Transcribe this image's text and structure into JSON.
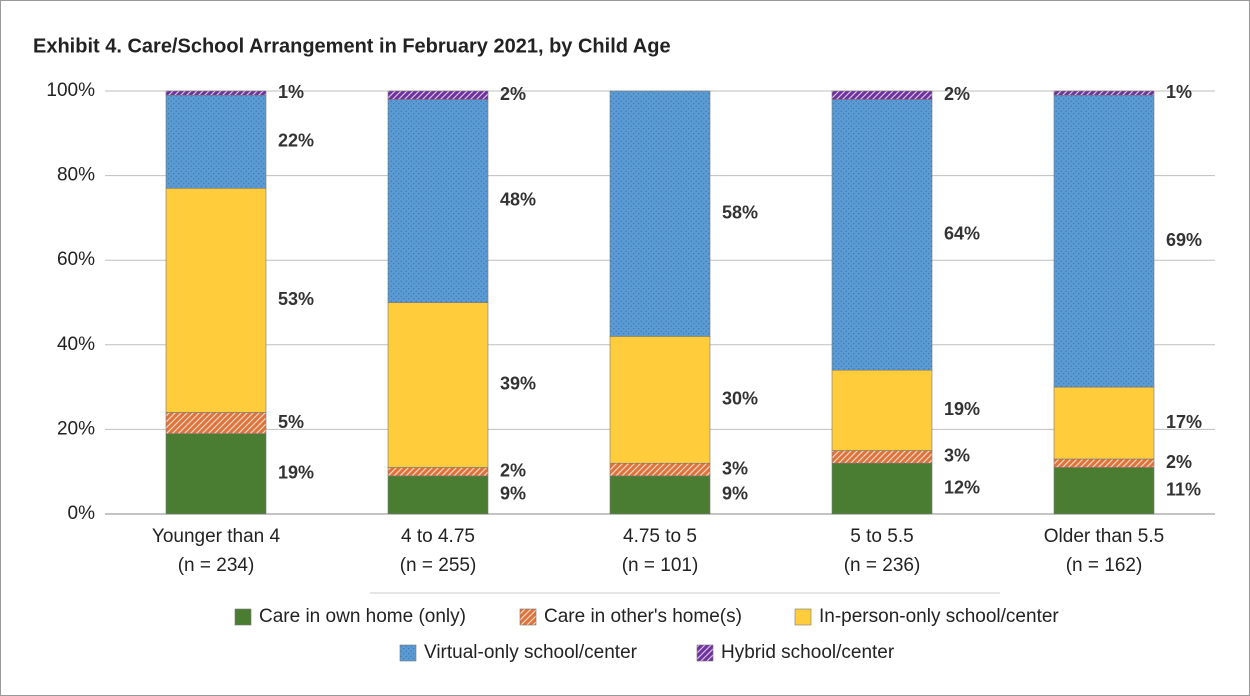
{
  "chart_data": {
    "type": "stacked_bar",
    "title": "Exhibit 4. Care/School Arrangement in February 2021, by Child Age",
    "categories": [
      [
        "Younger than 4",
        "(n = 234)"
      ],
      [
        "4 to 4.75",
        "(n = 255)"
      ],
      [
        "4.75 to 5",
        "(n = 101)"
      ],
      [
        "5 to 5.5",
        "(n = 236)"
      ],
      [
        "Older than 5.5",
        "(n = 162)"
      ]
    ],
    "series": [
      {
        "name": "Care in own home (only)",
        "color": "#4a7d32",
        "pattern": "solid",
        "values": [
          19,
          9,
          9,
          12,
          11
        ],
        "value_labels": [
          "19%",
          "9%",
          "9%",
          "12%",
          "11%"
        ]
      },
      {
        "name": "Care in other's home(s)",
        "color": "#e0733a",
        "pattern": "hatch",
        "values": [
          5,
          2,
          3,
          3,
          2
        ],
        "value_labels": [
          "5%",
          "2%",
          "3%",
          "3%",
          "2%"
        ]
      },
      {
        "name": "In-person-only school/center",
        "color": "#ffcd3c",
        "pattern": "solid",
        "values": [
          53,
          39,
          30,
          19,
          17
        ],
        "value_labels": [
          "53%",
          "39%",
          "30%",
          "19%",
          "17%"
        ]
      },
      {
        "name": "Virtual-only school/center",
        "color": "#5b9bd5",
        "pattern": "dots",
        "values": [
          22,
          48,
          58,
          64,
          69
        ],
        "value_labels": [
          "22%",
          "48%",
          "58%",
          "64%",
          "69%"
        ]
      },
      {
        "name": "Hybrid school/center",
        "color": "#7030a0",
        "pattern": "hatch",
        "values": [
          1,
          2,
          null,
          2,
          1
        ],
        "value_labels": [
          "1%",
          "2%",
          null,
          "2%",
          "1%"
        ]
      }
    ],
    "ylim": [
      0,
      100
    ],
    "yticks": [
      {
        "value": 0,
        "label": "0%"
      },
      {
        "value": 20,
        "label": "20%"
      },
      {
        "value": 40,
        "label": "40%"
      },
      {
        "value": 60,
        "label": "60%"
      },
      {
        "value": 80,
        "label": "80%"
      },
      {
        "value": 100,
        "label": "100%"
      }
    ],
    "grid": true
  }
}
